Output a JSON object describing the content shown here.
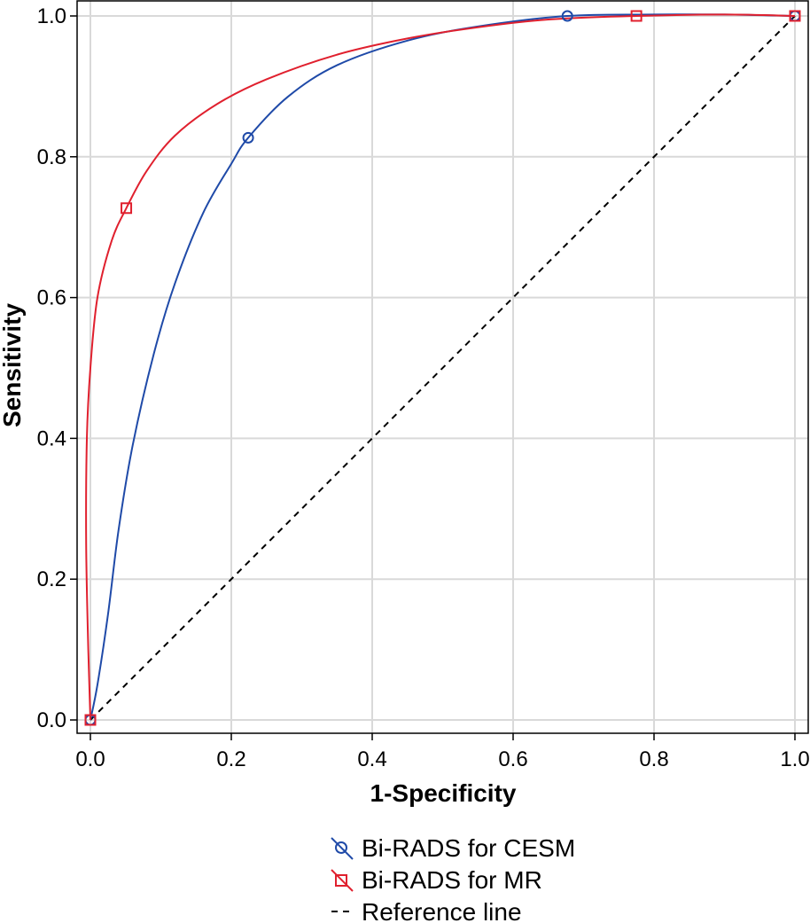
{
  "chart_data": {
    "type": "line",
    "title": "",
    "xlabel": "1-Specificity",
    "ylabel": "Sensitivity",
    "xlim": [
      0,
      1
    ],
    "ylim": [
      0,
      1
    ],
    "grid": true,
    "legend_position": "bottom",
    "x_ticks": [
      "0.0",
      "0.2",
      "0.4",
      "0.6",
      "0.8",
      "1.0"
    ],
    "y_ticks": [
      "0.0",
      "0.2",
      "0.4",
      "0.6",
      "0.8",
      "1.0"
    ],
    "series": [
      {
        "name": "Bi-RADS for CESM",
        "color": "#1f4aa8",
        "marker": "circle",
        "points": [
          {
            "x": 0.0,
            "y": 0.0
          },
          {
            "x": 0.224,
            "y": 0.827
          },
          {
            "x": 0.677,
            "y": 1.0
          },
          {
            "x": 1.0,
            "y": 1.0
          }
        ],
        "curve": [
          {
            "x": 0.0,
            "y": 0.0
          },
          {
            "x": 0.01,
            "y": 0.05
          },
          {
            "x": 0.025,
            "y": 0.15
          },
          {
            "x": 0.04,
            "y": 0.27
          },
          {
            "x": 0.06,
            "y": 0.39
          },
          {
            "x": 0.09,
            "y": 0.52
          },
          {
            "x": 0.12,
            "y": 0.62
          },
          {
            "x": 0.16,
            "y": 0.72
          },
          {
            "x": 0.2,
            "y": 0.79
          },
          {
            "x": 0.224,
            "y": 0.827
          },
          {
            "x": 0.28,
            "y": 0.885
          },
          {
            "x": 0.35,
            "y": 0.93
          },
          {
            "x": 0.45,
            "y": 0.965
          },
          {
            "x": 0.55,
            "y": 0.985
          },
          {
            "x": 0.677,
            "y": 1.0
          },
          {
            "x": 0.8,
            "y": 1.002
          },
          {
            "x": 0.9,
            "y": 1.002
          },
          {
            "x": 1.0,
            "y": 1.0
          }
        ]
      },
      {
        "name": "Bi-RADS for MR",
        "color": "#e0202e",
        "marker": "square",
        "points": [
          {
            "x": 0.0,
            "y": 0.0
          },
          {
            "x": 0.051,
            "y": 0.727
          },
          {
            "x": 0.775,
            "y": 1.0
          },
          {
            "x": 1.0,
            "y": 1.0
          }
        ],
        "curve": [
          {
            "x": 0.0,
            "y": 0.0
          },
          {
            "x": -0.003,
            "y": 0.1
          },
          {
            "x": -0.006,
            "y": 0.25
          },
          {
            "x": -0.005,
            "y": 0.4
          },
          {
            "x": 0.0,
            "y": 0.5
          },
          {
            "x": 0.01,
            "y": 0.6
          },
          {
            "x": 0.03,
            "y": 0.68
          },
          {
            "x": 0.051,
            "y": 0.727
          },
          {
            "x": 0.08,
            "y": 0.78
          },
          {
            "x": 0.12,
            "y": 0.83
          },
          {
            "x": 0.18,
            "y": 0.875
          },
          {
            "x": 0.25,
            "y": 0.91
          },
          {
            "x": 0.35,
            "y": 0.945
          },
          {
            "x": 0.45,
            "y": 0.968
          },
          {
            "x": 0.55,
            "y": 0.984
          },
          {
            "x": 0.65,
            "y": 0.995
          },
          {
            "x": 0.775,
            "y": 1.0
          },
          {
            "x": 0.9,
            "y": 1.002
          },
          {
            "x": 1.0,
            "y": 1.0
          }
        ]
      },
      {
        "name": "Reference line",
        "color": "#000000",
        "dashed": true,
        "curve": [
          {
            "x": 0.0,
            "y": 0.0
          },
          {
            "x": 1.0,
            "y": 1.0
          }
        ]
      }
    ]
  }
}
